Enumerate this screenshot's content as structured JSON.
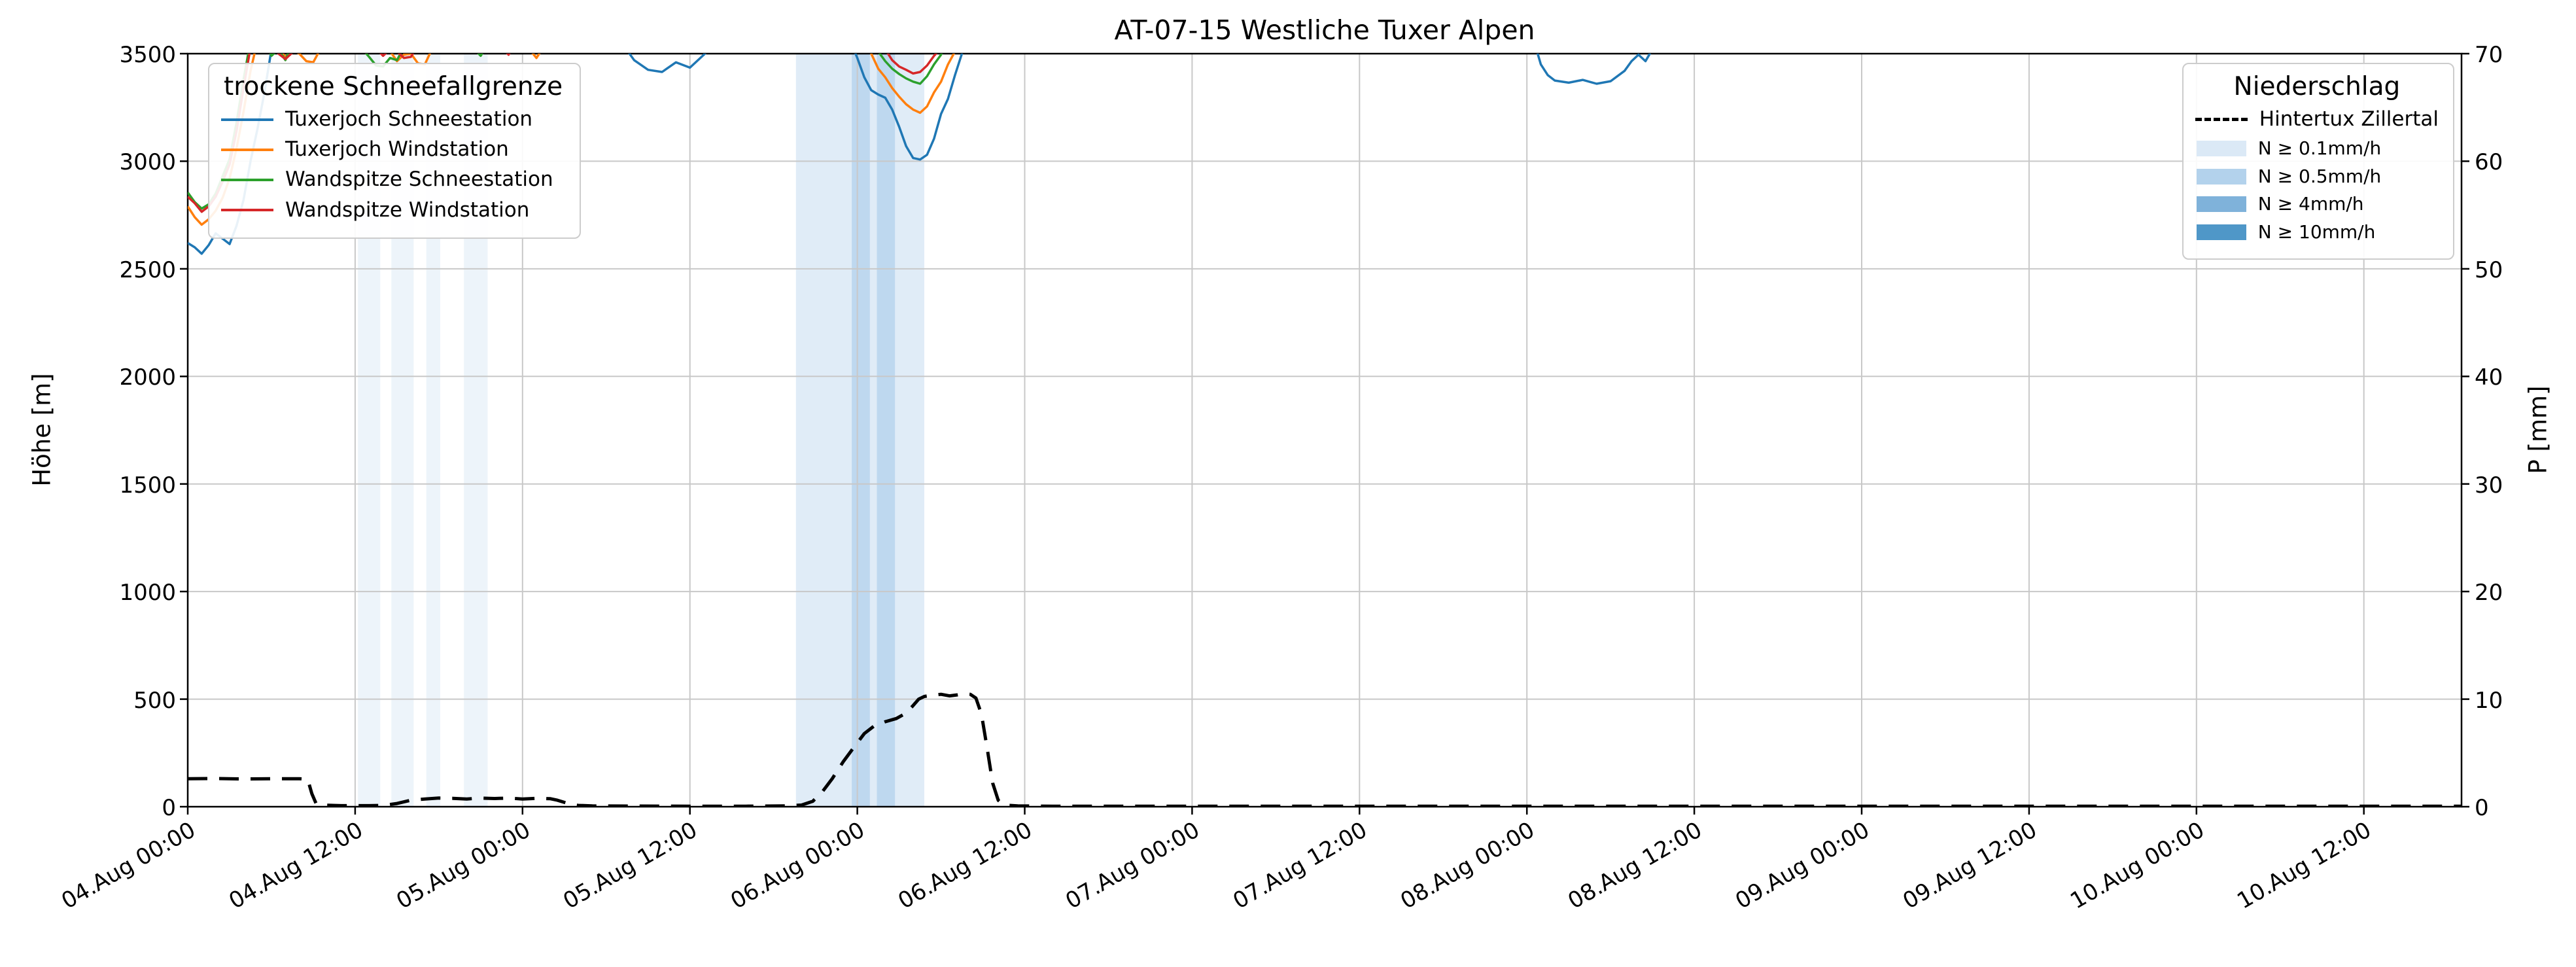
{
  "chart_data": {
    "type": "line",
    "title": "AT-07-15 Westliche Tuxer Alpen",
    "grid": true,
    "background_color": "#ffffff",
    "grid_color": "#c8c8c8",
    "x_axis": {
      "range_hours": [
        0,
        163
      ],
      "start_label": "04.Aug 00:00",
      "tick_hours": [
        0,
        12,
        24,
        36,
        48,
        60,
        72,
        84,
        96,
        108,
        120,
        132,
        144,
        156
      ],
      "tick_labels": [
        "04.Aug 00:00",
        "04.Aug 12:00",
        "05.Aug 00:00",
        "05.Aug 12:00",
        "06.Aug 00:00",
        "06.Aug 12:00",
        "07.Aug 00:00",
        "07.Aug 12:00",
        "08.Aug 00:00",
        "08.Aug 12:00",
        "09.Aug 00:00",
        "09.Aug 12:00",
        "10.Aug 00:00",
        "10.Aug 12:00"
      ]
    },
    "y_left": {
      "label": "Höhe [m]",
      "range": [
        0,
        3500
      ],
      "ticks": [
        0,
        500,
        1000,
        1500,
        2000,
        2500,
        3000,
        3500
      ],
      "tick_labels": [
        "0",
        "500",
        "1000",
        "1500",
        "2000",
        "2500",
        "3000",
        "3500"
      ]
    },
    "y_right": {
      "label": "P [mm]",
      "range": [
        0,
        70
      ],
      "ticks": [
        0,
        10,
        20,
        30,
        40,
        50,
        60,
        70
      ],
      "tick_labels": [
        "0",
        "10",
        "20",
        "30",
        "40",
        "50",
        "60",
        "70"
      ]
    },
    "series": [
      {
        "name": "Tuxerjoch Schneestation",
        "color": "#1f77b4",
        "axis": "left",
        "style": "solid",
        "points": [
          [
            0,
            2620
          ],
          [
            0.5,
            2600
          ],
          [
            1,
            2570
          ],
          [
            1.5,
            2610
          ],
          [
            2,
            2665
          ],
          [
            2.5,
            2640
          ],
          [
            3,
            2615
          ],
          [
            3.5,
            2700
          ],
          [
            4,
            2820
          ],
          [
            4.5,
            3000
          ],
          [
            5,
            3150
          ],
          [
            5.5,
            3320
          ],
          [
            6,
            3520
          ],
          [
            6.5,
            3560
          ],
          [
            31,
            3560
          ],
          [
            32,
            3470
          ],
          [
            33,
            3425
          ],
          [
            34,
            3415
          ],
          [
            35,
            3460
          ],
          [
            36,
            3435
          ],
          [
            37,
            3495
          ],
          [
            38,
            3560
          ],
          [
            47.5,
            3560
          ],
          [
            48,
            3480
          ],
          [
            48.5,
            3390
          ],
          [
            49,
            3330
          ],
          [
            49.5,
            3310
          ],
          [
            50,
            3295
          ],
          [
            50.5,
            3240
          ],
          [
            51,
            3160
          ],
          [
            51.5,
            3070
          ],
          [
            52,
            3015
          ],
          [
            52.5,
            3008
          ],
          [
            53,
            3030
          ],
          [
            53.5,
            3105
          ],
          [
            54,
            3220
          ],
          [
            54.5,
            3290
          ],
          [
            55,
            3400
          ],
          [
            55.5,
            3500
          ],
          [
            56,
            3560
          ],
          [
            96.5,
            3560
          ],
          [
            97,
            3450
          ],
          [
            97.5,
            3400
          ],
          [
            98,
            3375
          ],
          [
            99,
            3365
          ],
          [
            100,
            3378
          ],
          [
            101,
            3360
          ],
          [
            102,
            3372
          ],
          [
            103,
            3420
          ],
          [
            103.5,
            3465
          ],
          [
            104,
            3495
          ],
          [
            104.5,
            3465
          ],
          [
            105,
            3520
          ],
          [
            105.5,
            3560
          ],
          [
            163,
            3560
          ]
        ]
      },
      {
        "name": "Tuxerjoch Windstation",
        "color": "#ff7f0e",
        "axis": "left",
        "style": "solid",
        "points": [
          [
            0,
            2790
          ],
          [
            0.5,
            2740
          ],
          [
            1,
            2705
          ],
          [
            1.5,
            2730
          ],
          [
            2,
            2770
          ],
          [
            2.5,
            2830
          ],
          [
            3,
            2920
          ],
          [
            3.5,
            3060
          ],
          [
            4,
            3230
          ],
          [
            4.5,
            3420
          ],
          [
            5,
            3560
          ],
          [
            6,
            3560
          ],
          [
            7,
            3485
          ],
          [
            7.5,
            3515
          ],
          [
            8,
            3500
          ],
          [
            8.5,
            3465
          ],
          [
            9,
            3460
          ],
          [
            9.5,
            3520
          ],
          [
            10,
            3560
          ],
          [
            14,
            3560
          ],
          [
            15,
            3465
          ],
          [
            15.5,
            3495
          ],
          [
            16,
            3500
          ],
          [
            16.5,
            3455
          ],
          [
            17,
            3450
          ],
          [
            17.5,
            3520
          ],
          [
            18,
            3560
          ],
          [
            24,
            3560
          ],
          [
            25,
            3480
          ],
          [
            25.5,
            3530
          ],
          [
            26,
            3560
          ],
          [
            48.5,
            3560
          ],
          [
            49,
            3500
          ],
          [
            49.5,
            3430
          ],
          [
            50,
            3390
          ],
          [
            50.5,
            3340
          ],
          [
            51,
            3300
          ],
          [
            51.5,
            3265
          ],
          [
            52,
            3240
          ],
          [
            52.5,
            3225
          ],
          [
            53,
            3255
          ],
          [
            53.5,
            3320
          ],
          [
            54,
            3370
          ],
          [
            54.5,
            3450
          ],
          [
            55,
            3510
          ],
          [
            55.5,
            3560
          ],
          [
            163,
            3560
          ]
        ]
      },
      {
        "name": "Wandspitze Schneestation",
        "color": "#2ca02c",
        "axis": "left",
        "style": "solid",
        "points": [
          [
            0,
            2855
          ],
          [
            0.5,
            2810
          ],
          [
            1,
            2780
          ],
          [
            1.5,
            2800
          ],
          [
            2,
            2850
          ],
          [
            2.5,
            2930
          ],
          [
            3,
            3010
          ],
          [
            3.5,
            3180
          ],
          [
            4,
            3380
          ],
          [
            4.5,
            3560
          ],
          [
            5.5,
            3560
          ],
          [
            6,
            3490
          ],
          [
            6.5,
            3520
          ],
          [
            7,
            3470
          ],
          [
            7.5,
            3550
          ],
          [
            8,
            3560
          ],
          [
            12,
            3560
          ],
          [
            13,
            3485
          ],
          [
            13.5,
            3445
          ],
          [
            14,
            3440
          ],
          [
            14.5,
            3480
          ],
          [
            15,
            3470
          ],
          [
            15.5,
            3530
          ],
          [
            16,
            3560
          ],
          [
            20,
            3560
          ],
          [
            21,
            3490
          ],
          [
            21.5,
            3540
          ],
          [
            22,
            3560
          ],
          [
            49,
            3560
          ],
          [
            49.5,
            3510
          ],
          [
            50,
            3465
          ],
          [
            50.5,
            3430
          ],
          [
            51,
            3405
          ],
          [
            51.5,
            3385
          ],
          [
            52,
            3370
          ],
          [
            52.5,
            3360
          ],
          [
            53,
            3395
          ],
          [
            53.5,
            3450
          ],
          [
            54,
            3495
          ],
          [
            54.5,
            3560
          ],
          [
            163,
            3560
          ]
        ]
      },
      {
        "name": "Wandspitze Windstation",
        "color": "#d62728",
        "axis": "left",
        "style": "solid",
        "points": [
          [
            0,
            2835
          ],
          [
            0.5,
            2805
          ],
          [
            1,
            2765
          ],
          [
            1.5,
            2790
          ],
          [
            2,
            2835
          ],
          [
            2.5,
            2905
          ],
          [
            3,
            2985
          ],
          [
            3.5,
            3140
          ],
          [
            4,
            3340
          ],
          [
            4.5,
            3530
          ],
          [
            5,
            3560
          ],
          [
            6,
            3560
          ],
          [
            6.5,
            3500
          ],
          [
            7,
            3475
          ],
          [
            7.5,
            3505
          ],
          [
            8,
            3560
          ],
          [
            13,
            3560
          ],
          [
            14,
            3490
          ],
          [
            14.5,
            3520
          ],
          [
            15,
            3510
          ],
          [
            15.5,
            3480
          ],
          [
            16,
            3485
          ],
          [
            16.5,
            3540
          ],
          [
            17,
            3560
          ],
          [
            22,
            3560
          ],
          [
            23,
            3495
          ],
          [
            23.5,
            3545
          ],
          [
            24,
            3560
          ],
          [
            49.5,
            3560
          ],
          [
            50,
            3520
          ],
          [
            50.5,
            3470
          ],
          [
            51,
            3440
          ],
          [
            51.5,
            3425
          ],
          [
            52,
            3408
          ],
          [
            52.5,
            3415
          ],
          [
            53,
            3445
          ],
          [
            53.5,
            3490
          ],
          [
            54,
            3525
          ],
          [
            54.5,
            3560
          ],
          [
            163,
            3560
          ]
        ]
      },
      {
        "name": "Hintertux Zillertal",
        "color": "#000000",
        "axis": "right",
        "style": "dashed",
        "points": [
          [
            0,
            2.6
          ],
          [
            2,
            2.62
          ],
          [
            4,
            2.58
          ],
          [
            6,
            2.6
          ],
          [
            8,
            2.6
          ],
          [
            8.6,
            2.55
          ],
          [
            8.9,
            1.2
          ],
          [
            9.2,
            0.3
          ],
          [
            9.6,
            0.15
          ],
          [
            11,
            0.1
          ],
          [
            13,
            0.1
          ],
          [
            14,
            0.12
          ],
          [
            15,
            0.3
          ],
          [
            16,
            0.6
          ],
          [
            17,
            0.72
          ],
          [
            18,
            0.8
          ],
          [
            19,
            0.78
          ],
          [
            20,
            0.72
          ],
          [
            21,
            0.8
          ],
          [
            22,
            0.76
          ],
          [
            23,
            0.8
          ],
          [
            24,
            0.72
          ],
          [
            25,
            0.78
          ],
          [
            26,
            0.74
          ],
          [
            26.5,
            0.6
          ],
          [
            27,
            0.4
          ],
          [
            27.5,
            0.2
          ],
          [
            28,
            0.12
          ],
          [
            29,
            0.07
          ],
          [
            32,
            0.06
          ],
          [
            36,
            0.05
          ],
          [
            40,
            0.05
          ],
          [
            43,
            0.08
          ],
          [
            44,
            0.15
          ],
          [
            44.8,
            0.5
          ],
          [
            45.5,
            1.4
          ],
          [
            46.2,
            2.6
          ],
          [
            47,
            4.2
          ],
          [
            47.8,
            5.6
          ],
          [
            48.5,
            6.8
          ],
          [
            49.2,
            7.5
          ],
          [
            50,
            7.9
          ],
          [
            50.8,
            8.2
          ],
          [
            51.5,
            8.7
          ],
          [
            52,
            9.4
          ],
          [
            52.4,
            10
          ],
          [
            52.8,
            10.25
          ],
          [
            53.3,
            10.35
          ],
          [
            54,
            10.45
          ],
          [
            54.6,
            10.3
          ],
          [
            55.2,
            10.4
          ],
          [
            55.7,
            10.5
          ],
          [
            56.1,
            10.45
          ],
          [
            56.5,
            10.1
          ],
          [
            56.9,
            8.6
          ],
          [
            57.3,
            5.5
          ],
          [
            57.7,
            2.2
          ],
          [
            58.1,
            0.6
          ],
          [
            58.5,
            0.15
          ],
          [
            59.5,
            0.07
          ],
          [
            62,
            0.05
          ],
          [
            70,
            0.05
          ],
          [
            80,
            0.04
          ],
          [
            90,
            0.05
          ],
          [
            100,
            0.04
          ],
          [
            110,
            0.05
          ],
          [
            120,
            0.04
          ],
          [
            130,
            0.05
          ],
          [
            140,
            0.04
          ],
          [
            150,
            0.05
          ],
          [
            160,
            0.04
          ],
          [
            163,
            0.05
          ]
        ]
      }
    ],
    "precip_levels": [
      {
        "label": "N ≥ 0.1mm/h",
        "color": "#dbe9f6"
      },
      {
        "label": "N ≥ 0.5mm/h",
        "color": "#b3d2ec"
      },
      {
        "label": "N ≥ 4mm/h",
        "color": "#7fb2da"
      },
      {
        "label": "N ≥ 10mm/h",
        "color": "#4f97c8"
      }
    ],
    "precip_bands": [
      {
        "start_hour": 12.2,
        "end_hour": 13.8,
        "level": 0,
        "opacity": 0.5
      },
      {
        "start_hour": 14.6,
        "end_hour": 16.2,
        "level": 0,
        "opacity": 0.5
      },
      {
        "start_hour": 17.1,
        "end_hour": 18.1,
        "level": 0,
        "opacity": 0.5
      },
      {
        "start_hour": 19.8,
        "end_hour": 21.5,
        "level": 0,
        "opacity": 0.5
      },
      {
        "start_hour": 43.6,
        "end_hour": 52.8,
        "level": 0,
        "opacity": 0.85
      },
      {
        "start_hour": 47.6,
        "end_hour": 48.9,
        "level": 1,
        "opacity": 0.75
      },
      {
        "start_hour": 49.4,
        "end_hour": 50.7,
        "level": 1,
        "opacity": 0.75
      }
    ],
    "legend_snowline": {
      "title": "trockene Schneefallgrenze",
      "items": [
        "Tuxerjoch Schneestation",
        "Tuxerjoch Windstation",
        "Wandspitze Schneestation",
        "Wandspitze Windstation"
      ]
    },
    "legend_precip": {
      "title": "Niederschlag",
      "line_item": "Hintertux Zillertal",
      "level_items": [
        "N ≥ 0.1mm/h",
        "N ≥ 0.5mm/h",
        "N ≥ 4mm/h",
        "N ≥ 10mm/h"
      ]
    }
  }
}
